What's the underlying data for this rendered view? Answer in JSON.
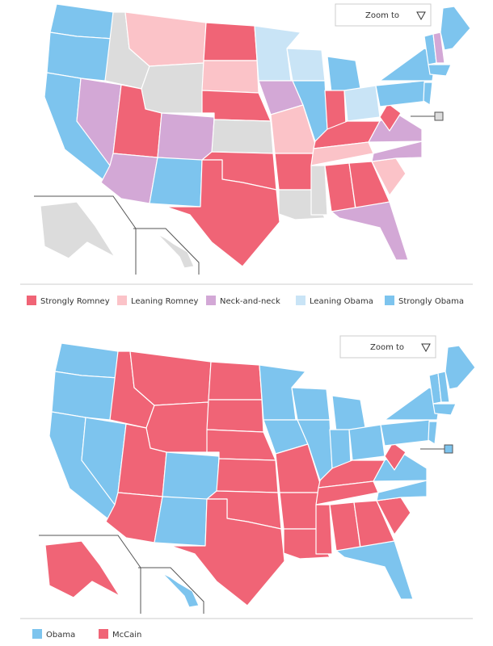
{
  "panels": [
    {
      "zoom_label": "Zoom to",
      "legend": [
        {
          "label": "Strongly Romney",
          "color": "#f06476"
        },
        {
          "label": "Leaning Romney",
          "color": "#fbc3c8"
        },
        {
          "label": "Neck-and-neck",
          "color": "#d3a8d6"
        },
        {
          "label": "Leaning Obama",
          "color": "#c9e4f6"
        },
        {
          "label": "Strongly Obama",
          "color": "#7dc4ee"
        }
      ]
    },
    {
      "zoom_label": "Zoom to",
      "legend": [
        {
          "label": "Obama",
          "color": "#7dc4ee"
        },
        {
          "label": "McCain",
          "color": "#f06476"
        }
      ]
    }
  ]
}
